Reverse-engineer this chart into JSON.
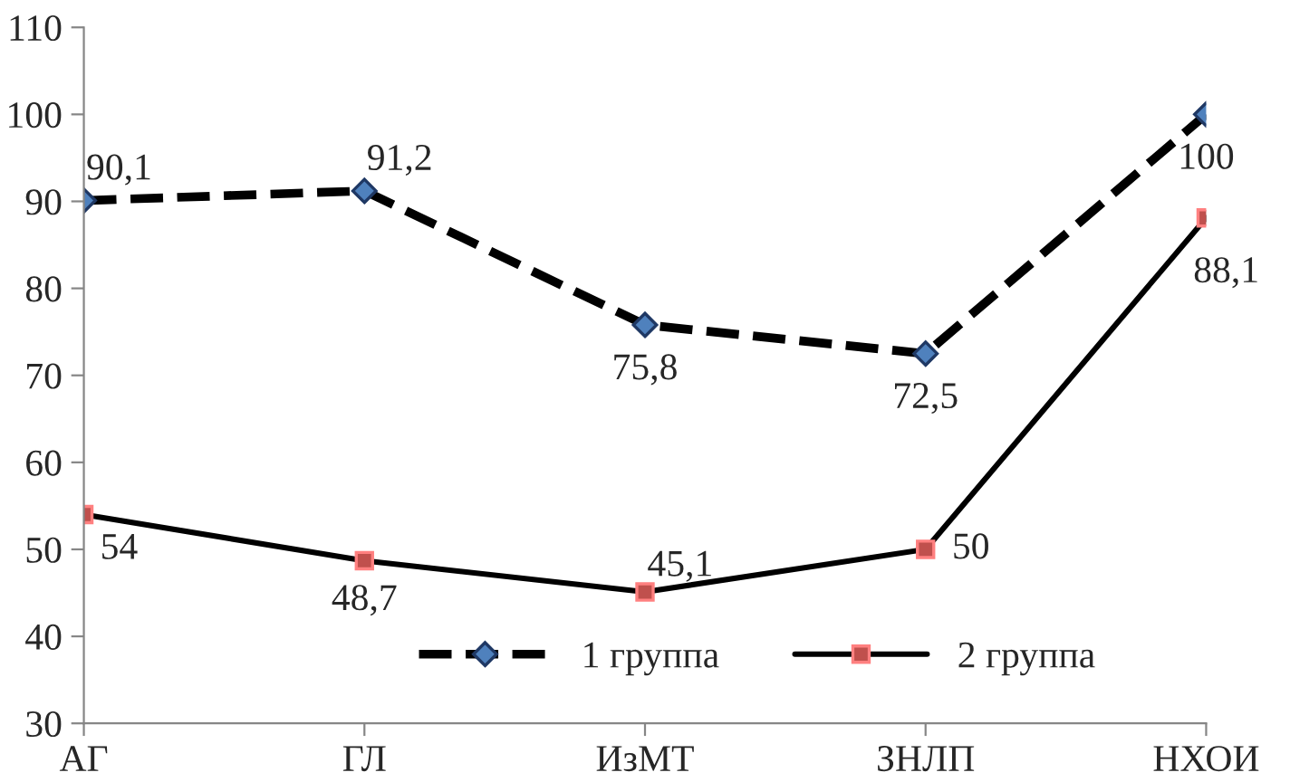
{
  "chart_data": {
    "type": "line",
    "categories": [
      "АГ",
      "ГЛ",
      "ИзМТ",
      "ЗНЛП",
      "НХОИ"
    ],
    "series": [
      {
        "name": "1 группа",
        "color": "#000000",
        "marker": "diamond",
        "line_style": "dashed",
        "values": [
          90.1,
          91.2,
          75.8,
          72.5,
          100
        ],
        "value_labels": [
          "90,1",
          "91,2",
          "75,8",
          "72,5",
          "100"
        ]
      },
      {
        "name": "2 группа",
        "color": "#000000",
        "marker": "square",
        "line_style": "solid",
        "values": [
          54,
          48.7,
          45.1,
          50,
          88.1
        ],
        "value_labels": [
          "54",
          "48,7",
          "45,1",
          "50",
          "88,1"
        ]
      }
    ],
    "ylim": [
      30,
      110
    ],
    "yticks": [
      30,
      40,
      50,
      60,
      70,
      80,
      90,
      100,
      110
    ],
    "grid": false,
    "legend": "bottom"
  }
}
